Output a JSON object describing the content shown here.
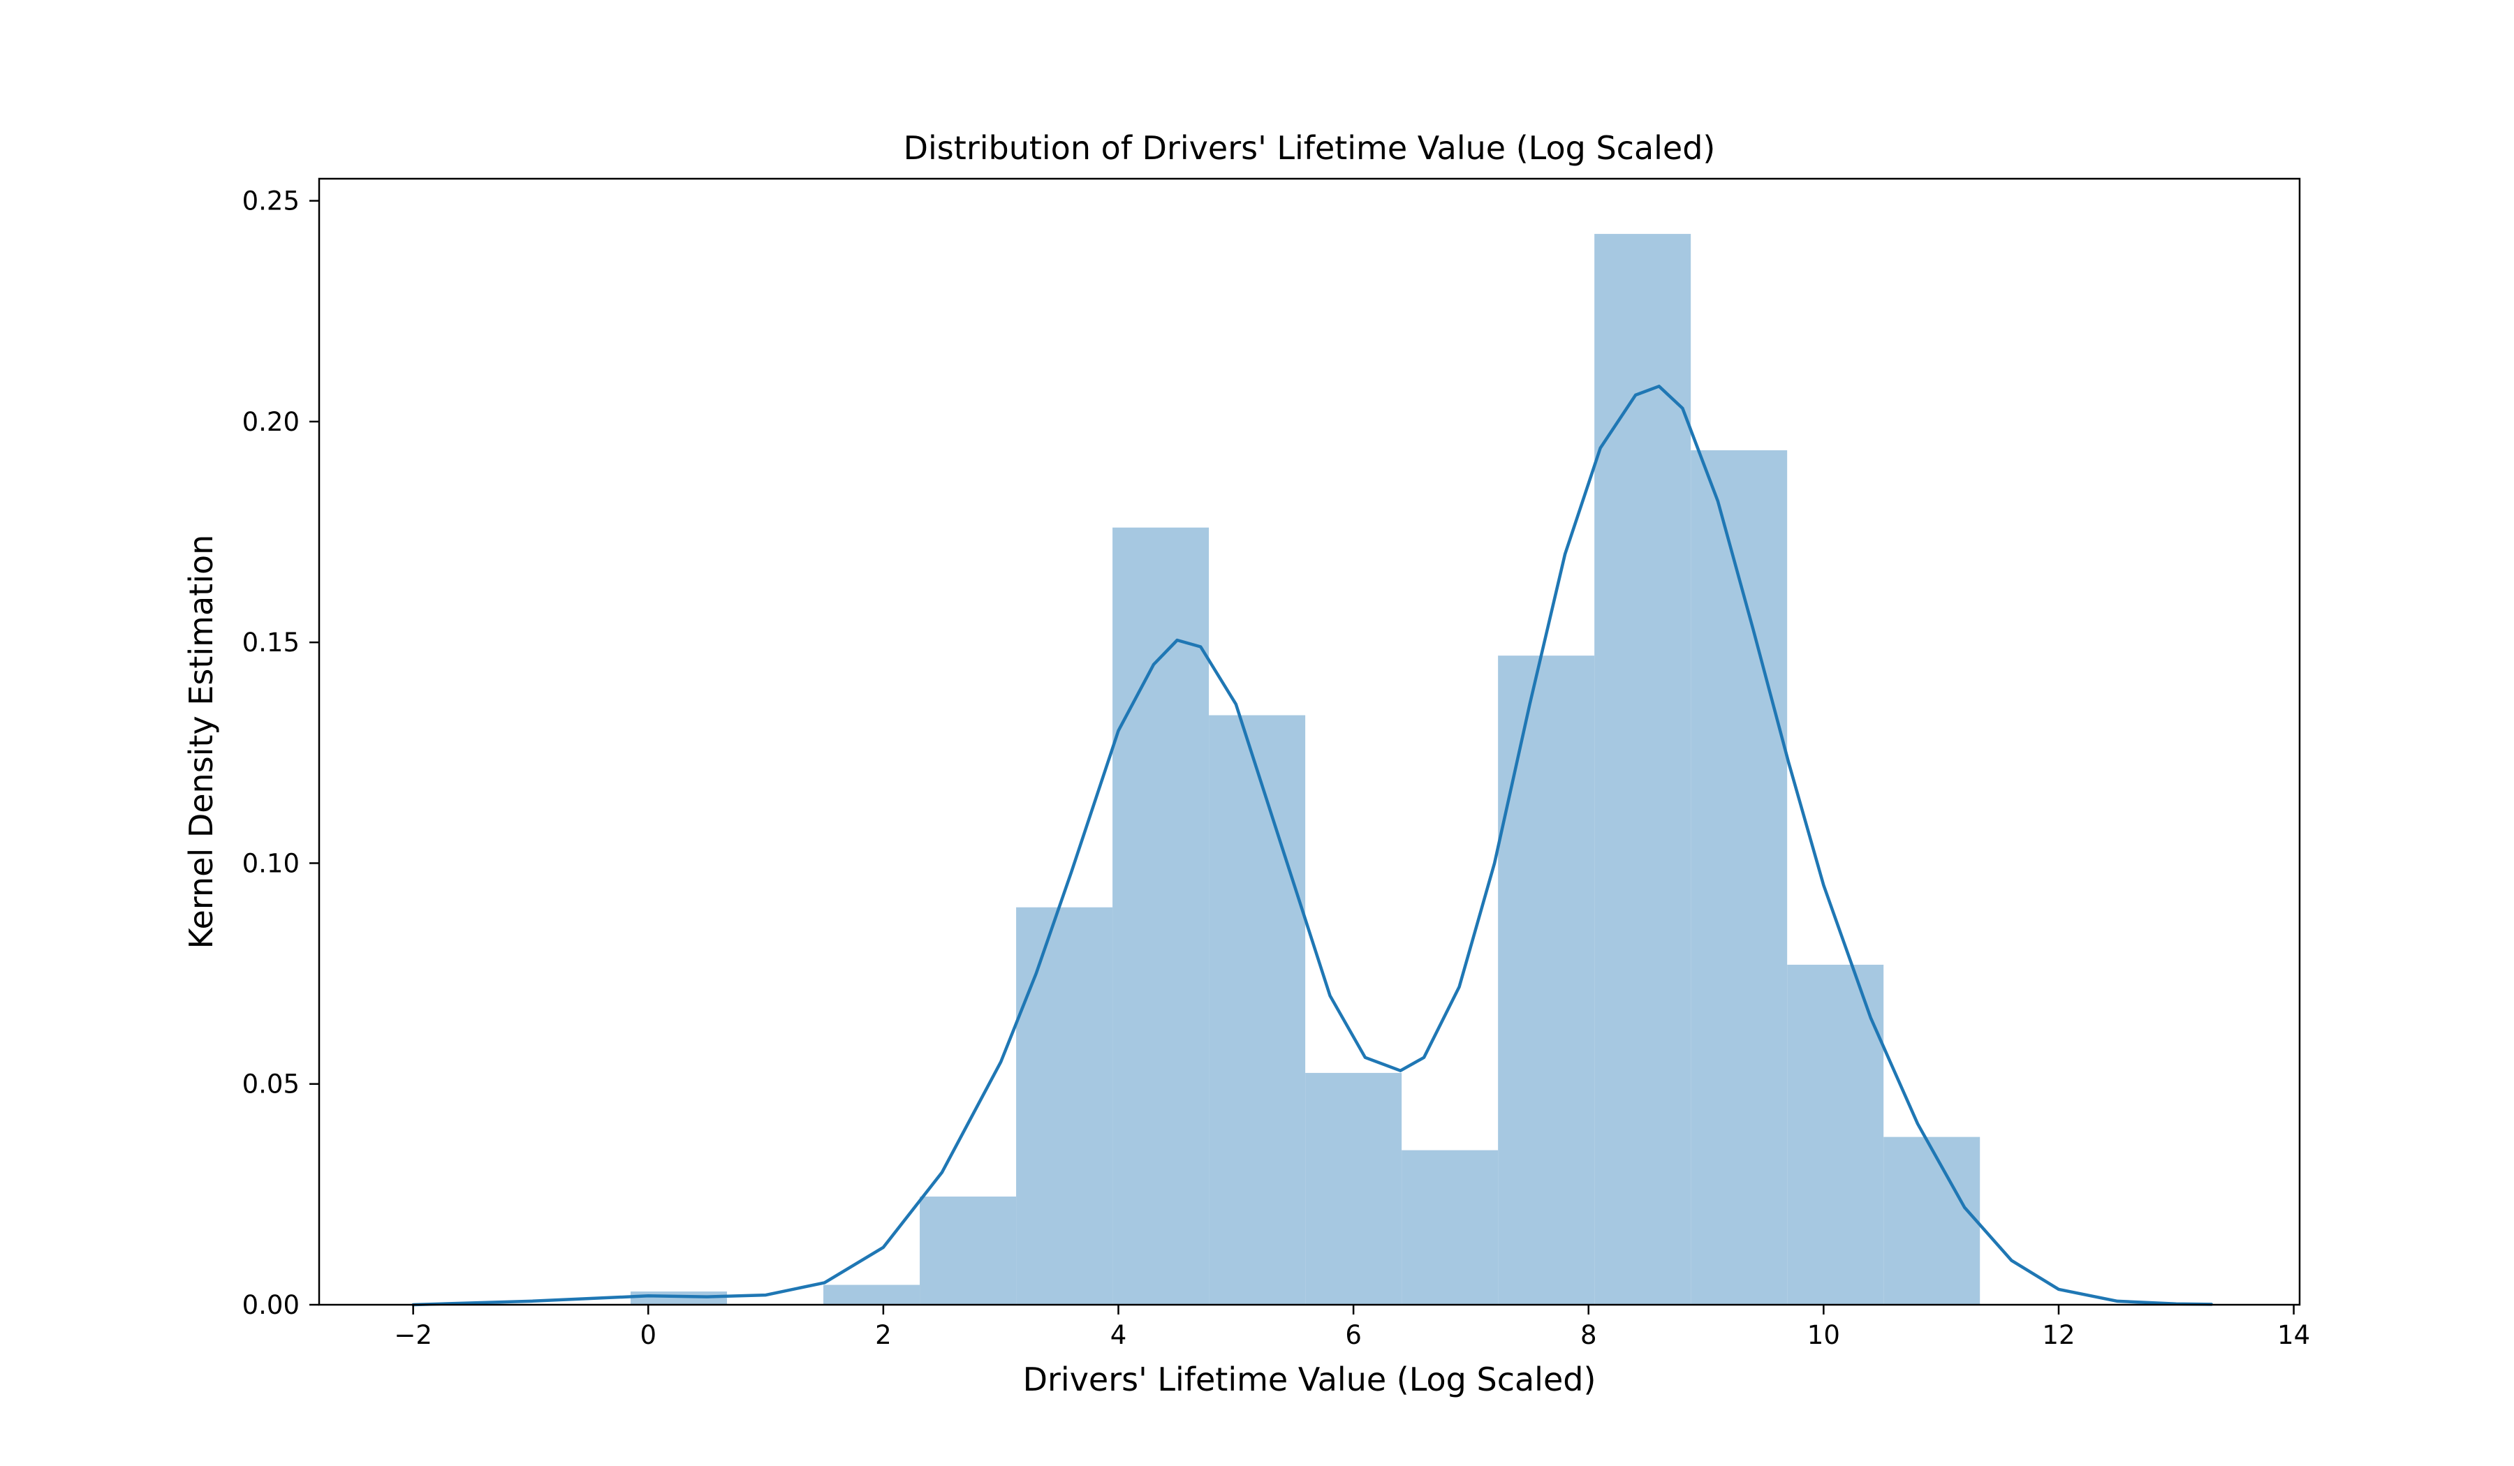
{
  "chart_data": {
    "type": "bar",
    "title": "Distribution of Drivers' Lifetime Value (Log Scaled)",
    "xlabel": "Drivers' Lifetime Value (Log Scaled)",
    "ylabel": "Kernel Density Estimation",
    "xlim": [
      -2.8,
      14.05
    ],
    "ylim": [
      0,
      0.255
    ],
    "xticks": [
      {
        "value": -2,
        "label": "−2"
      },
      {
        "value": 0,
        "label": "0"
      },
      {
        "value": 2,
        "label": "2"
      },
      {
        "value": 4,
        "label": "4"
      },
      {
        "value": 6,
        "label": "6"
      },
      {
        "value": 8,
        "label": "8"
      },
      {
        "value": 10,
        "label": "10"
      },
      {
        "value": 12,
        "label": "12"
      },
      {
        "value": 14,
        "label": "14"
      }
    ],
    "yticks": [
      {
        "value": 0,
        "label": "0.00"
      },
      {
        "value": 0.05,
        "label": "0.05"
      },
      {
        "value": 0.1,
        "label": "0.10"
      },
      {
        "value": 0.15,
        "label": "0.15"
      },
      {
        "value": 0.2,
        "label": "0.20"
      },
      {
        "value": 0.25,
        "label": "0.25"
      }
    ],
    "grid": false,
    "histogram": {
      "color": "#a6c8e1",
      "bins": [
        {
          "x0": -0.15,
          "x1": 0.67,
          "density": 0.003
        },
        {
          "x0": 0.67,
          "x1": 1.49,
          "density": 0.0
        },
        {
          "x0": 1.49,
          "x1": 2.31,
          "density": 0.0045
        },
        {
          "x0": 2.31,
          "x1": 3.13,
          "density": 0.0245
        },
        {
          "x0": 3.13,
          "x1": 3.95,
          "density": 0.09
        },
        {
          "x0": 3.95,
          "x1": 4.77,
          "density": 0.176
        },
        {
          "x0": 4.77,
          "x1": 5.59,
          "density": 0.1335
        },
        {
          "x0": 5.59,
          "x1": 6.41,
          "density": 0.0525
        },
        {
          "x0": 6.41,
          "x1": 7.23,
          "density": 0.035
        },
        {
          "x0": 7.23,
          "x1": 8.05,
          "density": 0.147
        },
        {
          "x0": 8.05,
          "x1": 8.87,
          "density": 0.2425
        },
        {
          "x0": 8.87,
          "x1": 9.69,
          "density": 0.1935
        },
        {
          "x0": 9.69,
          "x1": 10.51,
          "density": 0.077
        },
        {
          "x0": 10.51,
          "x1": 11.33,
          "density": 0.038
        }
      ]
    },
    "kde": {
      "color": "#1f77b4",
      "x": [
        -2.0,
        -1.0,
        0.0,
        0.5,
        1.0,
        1.5,
        2.0,
        2.5,
        3.0,
        3.3,
        3.6,
        4.0,
        4.3,
        4.5,
        4.7,
        5.0,
        5.4,
        5.8,
        6.1,
        6.4,
        6.6,
        6.9,
        7.2,
        7.5,
        7.8,
        8.1,
        8.4,
        8.6,
        8.8,
        9.1,
        9.4,
        9.7,
        10.0,
        10.4,
        10.8,
        11.2,
        11.6,
        12.0,
        12.5,
        13.0,
        13.3
      ],
      "y": [
        0.0,
        0.0008,
        0.002,
        0.0018,
        0.0022,
        0.005,
        0.013,
        0.03,
        0.055,
        0.075,
        0.098,
        0.13,
        0.145,
        0.1505,
        0.149,
        0.136,
        0.103,
        0.07,
        0.056,
        0.053,
        0.056,
        0.072,
        0.1,
        0.136,
        0.17,
        0.194,
        0.206,
        0.208,
        0.203,
        0.182,
        0.153,
        0.123,
        0.095,
        0.065,
        0.041,
        0.022,
        0.01,
        0.0035,
        0.0008,
        0.0002,
        0.0001
      ]
    }
  }
}
